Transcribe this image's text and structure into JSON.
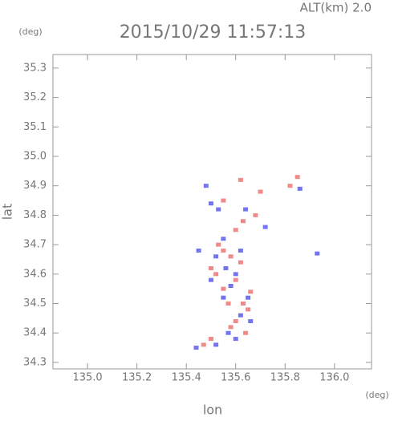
{
  "chart_data": {
    "type": "scatter",
    "title": "2015/10/29 11:57:13",
    "annotation": "ALT(km) 2.0",
    "y_unit": "(deg)",
    "x_unit": "(deg)",
    "x_label": "lon",
    "y_label": "lat",
    "xlim": [
      134.86,
      136.15
    ],
    "ylim": [
      34.278,
      35.346
    ],
    "xticks": [
      {
        "value": 135,
        "label": "135.0"
      },
      135.2,
      135.4,
      135.6,
      135.8,
      {
        "value": 136,
        "label": "136.0"
      }
    ],
    "yticks": [
      34.3,
      34.4,
      34.5,
      34.6,
      34.7,
      34.8,
      34.9,
      {
        "value": 35,
        "label": "35.0"
      },
      35.1,
      35.2,
      35.3
    ],
    "series": [
      {
        "color": "#f08a8a",
        "x": [
          135.55,
          135.58,
          135.62,
          135.52,
          135.6,
          135.55,
          135.63,
          135.65,
          135.6,
          135.58,
          135.5,
          135.47,
          135.62,
          135.7,
          135.82,
          135.85,
          135.63,
          135.68,
          135.6,
          135.55,
          135.5,
          135.66,
          135.57,
          135.53,
          135.64
        ],
        "values": [
          34.68,
          34.66,
          34.64,
          34.6,
          34.58,
          34.55,
          34.5,
          34.48,
          34.44,
          34.42,
          34.38,
          34.36,
          34.92,
          34.88,
          34.9,
          34.93,
          34.78,
          34.8,
          34.75,
          34.85,
          34.62,
          34.54,
          34.5,
          34.7,
          34.4
        ]
      },
      {
        "color": "#7474ee",
        "x": [
          135.52,
          135.5,
          135.56,
          135.6,
          135.55,
          135.62,
          135.6,
          135.52,
          135.44,
          135.48,
          135.5,
          135.53,
          135.64,
          135.72,
          135.86,
          135.93,
          135.58,
          135.65,
          135.45,
          135.55,
          135.62,
          135.66,
          135.57
        ],
        "values": [
          34.66,
          34.58,
          34.62,
          34.6,
          34.52,
          34.46,
          34.38,
          34.36,
          34.35,
          34.9,
          34.84,
          34.82,
          34.82,
          34.76,
          34.89,
          34.67,
          34.56,
          34.52,
          34.68,
          34.72,
          34.68,
          34.44,
          34.4
        ]
      }
    ]
  }
}
